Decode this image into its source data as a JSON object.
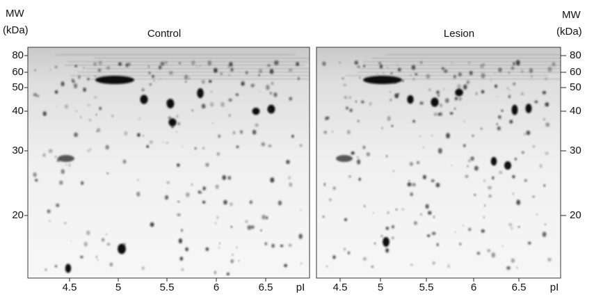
{
  "mw_axis": {
    "title_line1": "MW",
    "title_line2": "(kDa)",
    "ticks": [
      "80",
      "60",
      "50",
      "40",
      "30",
      "20"
    ]
  },
  "panels": [
    {
      "title": "Control",
      "pi_ticks": [
        "4.5",
        "5",
        "5.5",
        "6",
        "6.5"
      ],
      "pi_label": "pI"
    },
    {
      "title": "Lesion",
      "pi_ticks": [
        "4.5",
        "5",
        "5.5",
        "6",
        "6.5"
      ],
      "pi_label": "pI"
    }
  ]
}
